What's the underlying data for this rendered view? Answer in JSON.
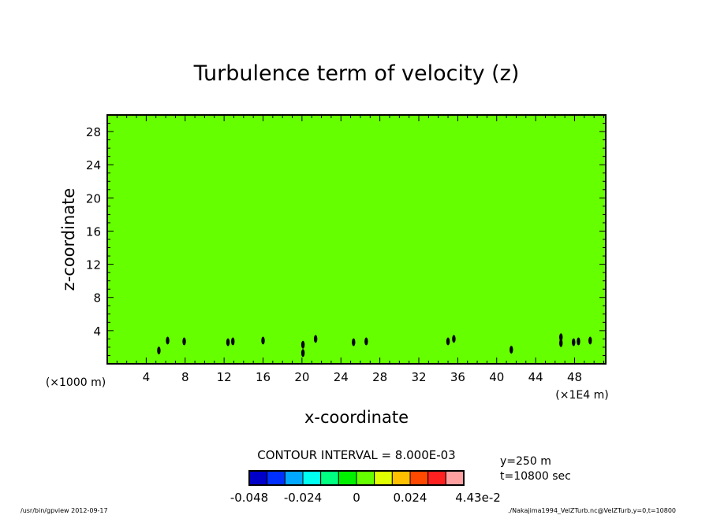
{
  "chart_data": {
    "type": "heatmap",
    "title": "Turbulence term of velocity (z)",
    "xlabel": "x-coordinate",
    "ylabel": "z-coordinate",
    "x_unit_left": "(×1000 m)",
    "x_unit_right": "(×1E4 m)",
    "xlim": [
      0,
      51.2
    ],
    "ylim": [
      0,
      30
    ],
    "xticks": [
      4,
      8,
      12,
      16,
      20,
      24,
      28,
      32,
      36,
      40,
      44,
      48
    ],
    "yticks": [
      4,
      8,
      12,
      16,
      20,
      24,
      28
    ],
    "background_value_color": "#66ff00",
    "features": [
      {
        "x": 5.3,
        "z": 1.6
      },
      {
        "x": 6.2,
        "z": 2.8
      },
      {
        "x": 7.9,
        "z": 2.7
      },
      {
        "x": 12.4,
        "z": 2.6
      },
      {
        "x": 12.9,
        "z": 2.7
      },
      {
        "x": 16.0,
        "z": 2.8
      },
      {
        "x": 20.1,
        "z": 2.3
      },
      {
        "x": 20.1,
        "z": 1.3
      },
      {
        "x": 21.4,
        "z": 3.0
      },
      {
        "x": 25.3,
        "z": 2.6
      },
      {
        "x": 26.6,
        "z": 2.7
      },
      {
        "x": 35.0,
        "z": 2.7
      },
      {
        "x": 35.6,
        "z": 3.0
      },
      {
        "x": 41.5,
        "z": 1.7
      },
      {
        "x": 46.6,
        "z": 3.2
      },
      {
        "x": 46.6,
        "z": 2.5
      },
      {
        "x": 47.9,
        "z": 2.6
      },
      {
        "x": 48.4,
        "z": 2.7
      },
      {
        "x": 49.6,
        "z": 2.8
      }
    ],
    "contour_interval_label": "CONTOUR INTERVAL = 8.000E-03",
    "colorbar": {
      "levels": [
        -0.048,
        -0.04,
        -0.032,
        -0.024,
        -0.016,
        -0.008,
        0,
        0.008,
        0.016,
        0.024,
        0.032,
        0.04,
        0.0443
      ],
      "colors": [
        "#0000c8",
        "#0030ff",
        "#00a8ff",
        "#00fff0",
        "#00ff80",
        "#00f000",
        "#66ff00",
        "#e0ff00",
        "#ffc000",
        "#ff4800",
        "#ff2020",
        "#ffa0a0"
      ],
      "labels": [
        "-0.048",
        "-0.024",
        "0",
        "0.024",
        "4.43e-2"
      ]
    }
  },
  "info": {
    "y": "y=250  m",
    "t": "t=10800  sec"
  },
  "footer": {
    "left": "/usr/bin/gpview   2012-09-17",
    "right": "./Nakajima1994_VelZTurb.nc@VelZTurb,y=0,t=10800"
  }
}
